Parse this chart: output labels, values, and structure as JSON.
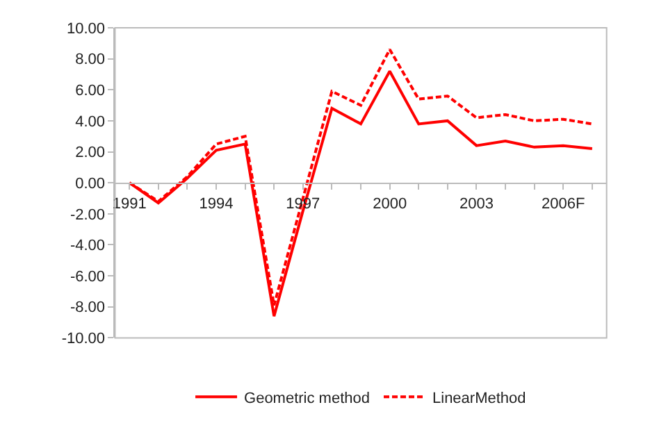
{
  "chart_data": {
    "type": "line",
    "categories": [
      "1991",
      null,
      null,
      "1994",
      null,
      null,
      "1997",
      null,
      null,
      "2000",
      null,
      null,
      "2003",
      null,
      null,
      "2006F",
      null
    ],
    "series": [
      {
        "name": "Geometric method",
        "color": "#ff0000",
        "line_style": "solid",
        "values": [
          0.0,
          -1.3,
          0.3,
          2.1,
          2.5,
          -8.6,
          -1.8,
          4.8,
          3.8,
          7.2,
          3.8,
          4.0,
          2.4,
          2.7,
          2.3,
          2.4,
          2.2
        ]
      },
      {
        "name": "LinearMethod",
        "color": "#ff0000",
        "line_style": "dashed",
        "values": [
          0.0,
          -1.2,
          0.4,
          2.5,
          3.0,
          -7.9,
          -1.0,
          5.9,
          5.0,
          8.6,
          5.4,
          5.6,
          4.2,
          4.4,
          4.0,
          4.1,
          3.8
        ]
      }
    ],
    "ylim": [
      -10,
      10
    ],
    "yticks": [
      {
        "value": -10,
        "label": "-10.00"
      },
      {
        "value": -8,
        "label": "-8.00"
      },
      {
        "value": -6,
        "label": "-6.00"
      },
      {
        "value": -4,
        "label": "-4.00"
      },
      {
        "value": -2,
        "label": "-2.00"
      },
      {
        "value": 0,
        "label": "0.00"
      },
      {
        "value": 2,
        "label": "2.00"
      },
      {
        "value": 4,
        "label": "4.00"
      },
      {
        "value": 6,
        "label": "6.00"
      },
      {
        "value": 8,
        "label": "8.00"
      },
      {
        "value": 10,
        "label": "10.00"
      }
    ],
    "legend": "bottom",
    "marker": "none"
  }
}
